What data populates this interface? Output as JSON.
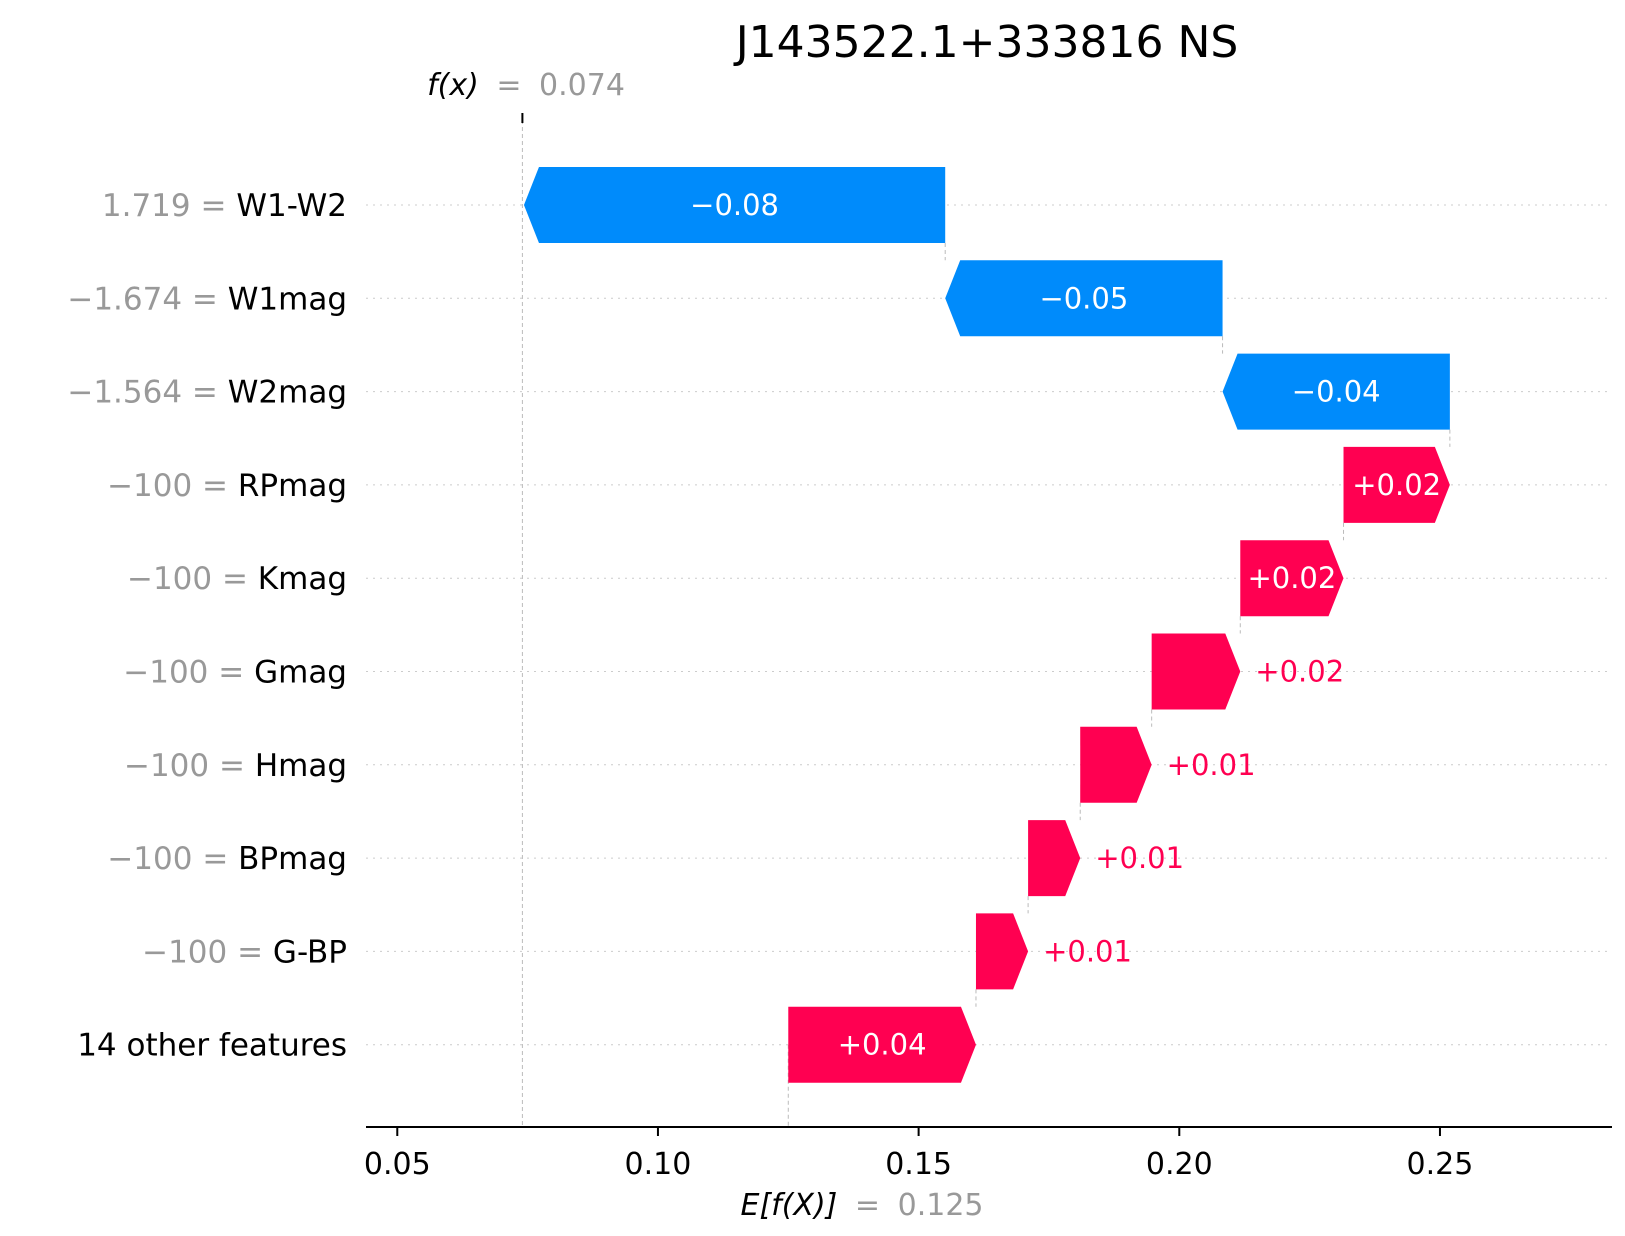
{
  "chart_data": {
    "type": "waterfall",
    "title": "J143522.1+333816 NS",
    "fx": {
      "label_prefix": "f(x)",
      "equals": "=",
      "value_text": "0.074",
      "value": 0.074
    },
    "expected": {
      "label_prefix": "E[f(X)]",
      "equals": "=",
      "value_text": "0.125",
      "value": 0.125
    },
    "xlim": [
      0.044,
      0.283
    ],
    "xticks": [
      {
        "value": 0.05,
        "label": "0.05"
      },
      {
        "value": 0.1,
        "label": "0.10"
      },
      {
        "value": 0.15,
        "label": "0.15"
      },
      {
        "value": 0.2,
        "label": "0.20"
      },
      {
        "value": 0.25,
        "label": "0.25"
      }
    ],
    "features": [
      {
        "value": "1.719",
        "name": "W1-W2",
        "start": 0.1551,
        "end": 0.0743,
        "label": "−0.08"
      },
      {
        "value": "−1.674",
        "name": "W1mag",
        "start": 0.2083,
        "end": 0.1551,
        "label": "−0.05"
      },
      {
        "value": "−1.564",
        "name": "W2mag",
        "start": 0.2519,
        "end": 0.2083,
        "label": "−0.04"
      },
      {
        "value": "−100",
        "name": "RPmag",
        "start": 0.2315,
        "end": 0.2519,
        "label": "+0.02"
      },
      {
        "value": "−100",
        "name": "Kmag",
        "start": 0.2117,
        "end": 0.2315,
        "label": "+0.02"
      },
      {
        "value": "−100",
        "name": "Gmag",
        "start": 0.1947,
        "end": 0.2117,
        "label": "+0.02"
      },
      {
        "value": "−100",
        "name": "Hmag",
        "start": 0.181,
        "end": 0.1947,
        "label": "+0.01"
      },
      {
        "value": "−100",
        "name": "BPmag",
        "start": 0.171,
        "end": 0.181,
        "label": "+0.01"
      },
      {
        "value": "−100",
        "name": "G-BP",
        "start": 0.161,
        "end": 0.171,
        "label": "+0.01"
      },
      {
        "value": "",
        "name": "14 other features",
        "start": 0.125,
        "end": 0.161,
        "label": "+0.04"
      }
    ],
    "colors": {
      "positive": "#ff0051",
      "negative": "#008bfb",
      "value_gray": "#999999",
      "axis": "#000000",
      "gridline": "#cccccc",
      "connector": "#bbbbbb"
    }
  }
}
